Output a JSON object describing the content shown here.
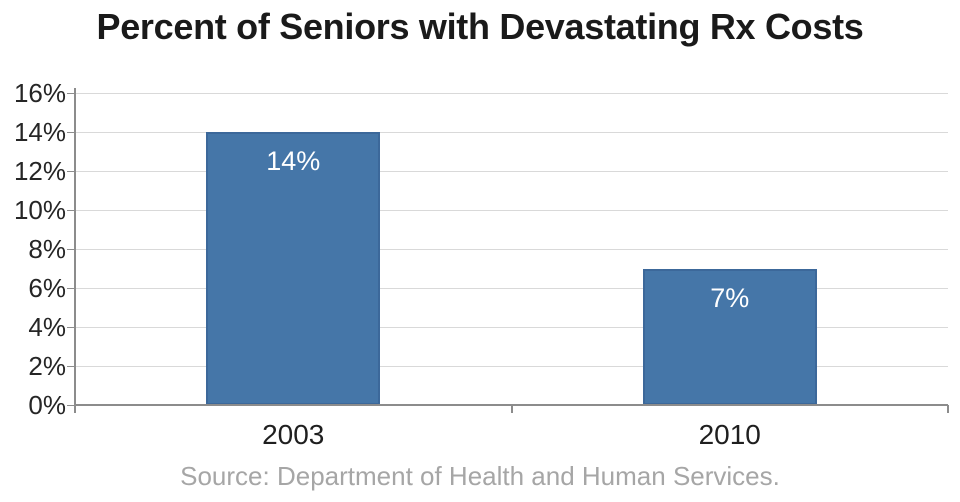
{
  "chart_data": {
    "type": "bar",
    "title": "Percent of Seniors with Devastating Rx Costs",
    "categories": [
      "2003",
      "2010"
    ],
    "values": [
      14,
      7
    ],
    "bar_labels": [
      "14%",
      "7%"
    ],
    "xlabel": "",
    "ylabel": "",
    "ylim": [
      0,
      16
    ],
    "ytick_step": 2,
    "ytick_labels": [
      "0%",
      "2%",
      "4%",
      "6%",
      "8%",
      "10%",
      "12%",
      "14%",
      "16%"
    ],
    "grid": "horizontal",
    "legend": "none",
    "source": "Source: Department of Health and Human Services.",
    "colors": {
      "bar_fill": "#4576A8",
      "bar_border": "#3C689A",
      "gridline": "#D9D9D9",
      "axis": "#8C8C8C",
      "title_text": "#1A1A1A",
      "tick_text": "#262626",
      "bar_label_text": "#FFFFFF",
      "source_text": "#A6A6A6"
    }
  }
}
